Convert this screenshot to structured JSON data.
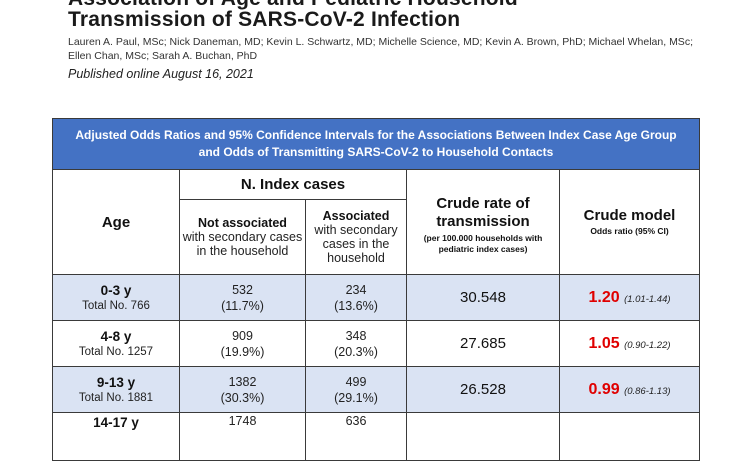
{
  "title": {
    "line1": "Association of Age and Pediatric Household",
    "line2": "Transmission of SARS-CoV-2 Infection"
  },
  "authors": "Lauren A. Paul, MSc; Nick Daneman, MD; Kevin L. Schwartz, MD; Michelle Science, MD; Kevin A. Brown, PhD; Michael Whelan, MSc; Ellen Chan, MSc; Sarah A. Buchan, PhD",
  "published": "Published online August 16, 2021",
  "table": {
    "caption": "Adjusted Odds Ratios and 95% Confidence Intervals for the Associations Between Index Case Age Group and Odds of Transmitting SARS-CoV-2 to Household Contacts",
    "headers": {
      "age": "Age",
      "index_cases": "N. Index cases",
      "not_associated_bold": "Not associated",
      "not_associated_rest": "with secondary cases in the household",
      "associated_bold": "Associated",
      "associated_rest": "with secondary cases in the household",
      "crude_rate": "Crude rate of transmission",
      "crude_rate_note": "(per 100.000 households with pediatric index cases)",
      "crude_model": "Crude model",
      "crude_model_note": "Odds ratio (95% CI)"
    },
    "rows": [
      {
        "age": "0-3 y",
        "total": "Total No. 766",
        "not_assoc_n": "532",
        "not_assoc_pct": "(11.7%)",
        "assoc_n": "234",
        "assoc_pct": "(13.6%)",
        "rate": "30.548",
        "or": "1.20",
        "ci": "(1.01-1.44)"
      },
      {
        "age": "4-8 y",
        "total": "Total No. 1257",
        "not_assoc_n": "909",
        "not_assoc_pct": "(19.9%)",
        "assoc_n": "348",
        "assoc_pct": "(20.3%)",
        "rate": "27.685",
        "or": "1.05",
        "ci": "(0.90-1.22)"
      },
      {
        "age": "9-13 y",
        "total": "Total No. 1881",
        "not_assoc_n": "1382",
        "not_assoc_pct": "(30.3%)",
        "assoc_n": "499",
        "assoc_pct": "(29.1%)",
        "rate": "26.528",
        "or": "0.99",
        "ci": "(0.86-1.13)"
      },
      {
        "age": "14-17 y",
        "total": "",
        "not_assoc_n": "1748",
        "not_assoc_pct": "",
        "assoc_n": "636",
        "assoc_pct": "",
        "rate": "",
        "or": "",
        "ci": ""
      }
    ]
  }
}
